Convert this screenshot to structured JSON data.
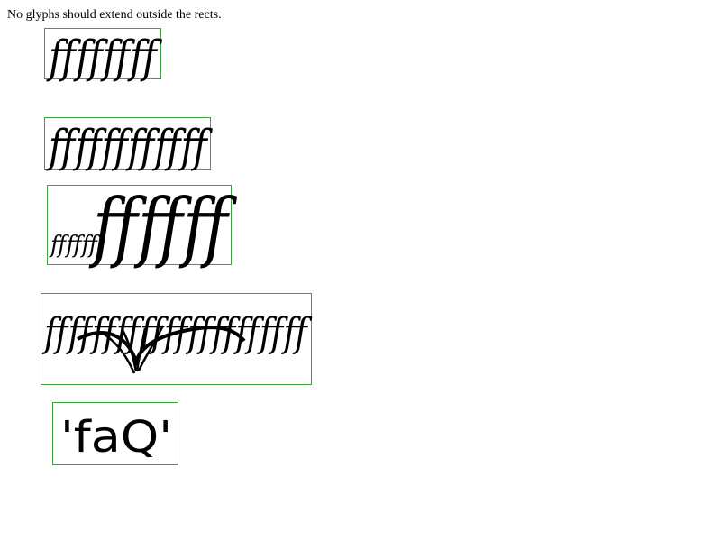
{
  "instruction": "No glyphs should extend outside the rects.",
  "samples": [
    {
      "text": "ffffffff"
    },
    {
      "text": "ffffffffffff"
    },
    {
      "small_text": "ffffff",
      "large_text": "ffffff"
    },
    {
      "text": "ffffffffffffffffffffff"
    },
    {
      "text": "'faQ'"
    }
  ],
  "colors": {
    "rect_border": "#3aa63a",
    "text": "#000000"
  }
}
